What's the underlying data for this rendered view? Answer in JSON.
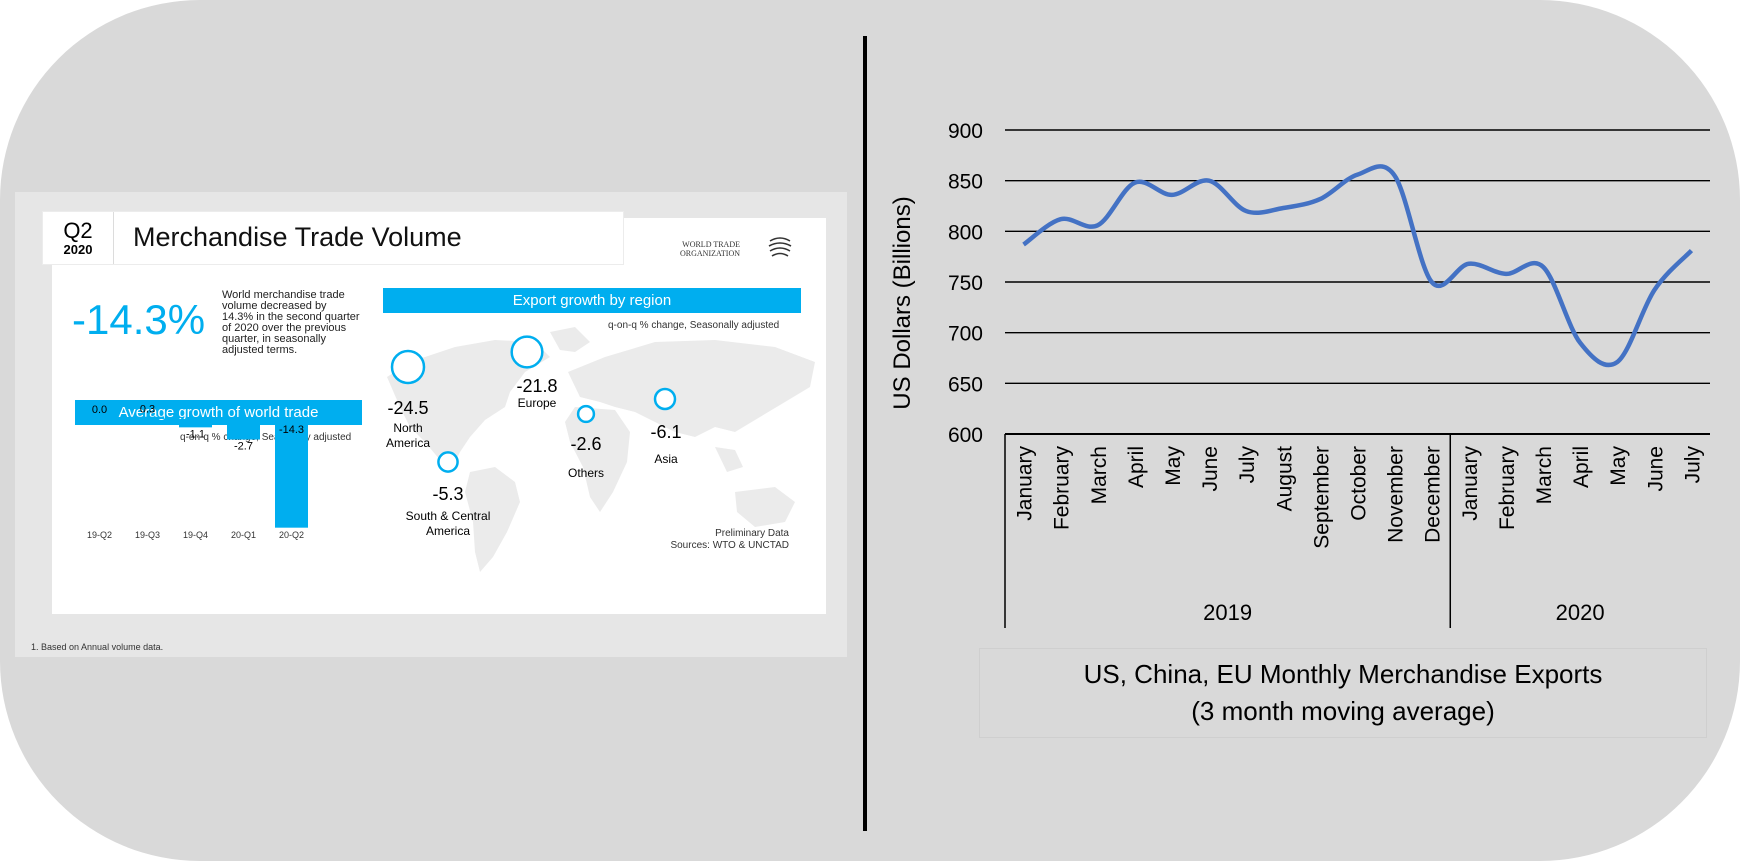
{
  "left_infographic": {
    "quarter": "Q2",
    "year": "2020",
    "title": "Merchandise Trade Volume",
    "org_line1": "WORLD TRADE",
    "org_line2": "ORGANIZATION",
    "headline_value": "-14.3%",
    "description": "World merchandise trade volume decreased by 14.3% in the second quarter of 2020 over the previous quarter, in seasonally adjusted terms.",
    "avg_growth_title": "Average growth of world trade",
    "avg_growth_note": "q-on-q % change, Seasonally adjusted",
    "export_title": "Export growth  by region",
    "export_note": "q-on-q % change, Seasonally adjusted",
    "preliminary": "Preliminary Data",
    "sources": "Sources: WTO & UNCTAD",
    "footnote": "1. Based on Annual volume data.",
    "accent_color": "#00aeef"
  },
  "chart_data": [
    {
      "type": "bar",
      "title": "Average growth of world trade",
      "categories": [
        "19-Q2",
        "19-Q3",
        "19-Q4",
        "20-Q1",
        "20-Q2"
      ],
      "values": [
        0.0,
        0.3,
        -1.1,
        -2.7,
        -14.3
      ],
      "value_labels": [
        "0.0",
        "0.3",
        "-1.1",
        "-2.7",
        "-14.3"
      ],
      "color": "#00aeef"
    },
    {
      "type": "scatter",
      "title": "Export growth  by region",
      "regions": [
        {
          "name": "North America",
          "line1": "North",
          "line2": "America",
          "value": -24.5,
          "label": "-24.5"
        },
        {
          "name": "Europe",
          "line1": "Europe",
          "line2": "",
          "value": -21.8,
          "label": "-21.8"
        },
        {
          "name": "South & Central America",
          "line1": "South & Central",
          "line2": "America",
          "value": -5.3,
          "label": "-5.3"
        },
        {
          "name": "Others",
          "line1": "Others",
          "line2": "",
          "value": -2.6,
          "label": "-2.6"
        },
        {
          "name": "Asia",
          "line1": "Asia",
          "line2": "",
          "value": -6.1,
          "label": "-6.1"
        }
      ]
    },
    {
      "type": "line",
      "title": "US, China, EU Monthly Merchandise Exports",
      "subtitle": "(3 month moving average)",
      "ylabel": "US Dollars (Billions)",
      "ylim": [
        600,
        900
      ],
      "yticks": [
        600,
        650,
        700,
        750,
        800,
        850,
        900
      ],
      "grid": true,
      "color": "#4472c4",
      "groups": [
        {
          "label": "2019",
          "months": [
            "January",
            "February",
            "March",
            "April",
            "May",
            "June",
            "July",
            "August",
            "September",
            "October",
            "November",
            "December"
          ]
        },
        {
          "label": "2020",
          "months": [
            "January",
            "February",
            "March",
            "April",
            "May",
            "June",
            "July"
          ]
        }
      ],
      "values": [
        787,
        812,
        806,
        848,
        836,
        850,
        820,
        823,
        832,
        856,
        855,
        750,
        768,
        758,
        765,
        690,
        671,
        742,
        781
      ]
    }
  ]
}
